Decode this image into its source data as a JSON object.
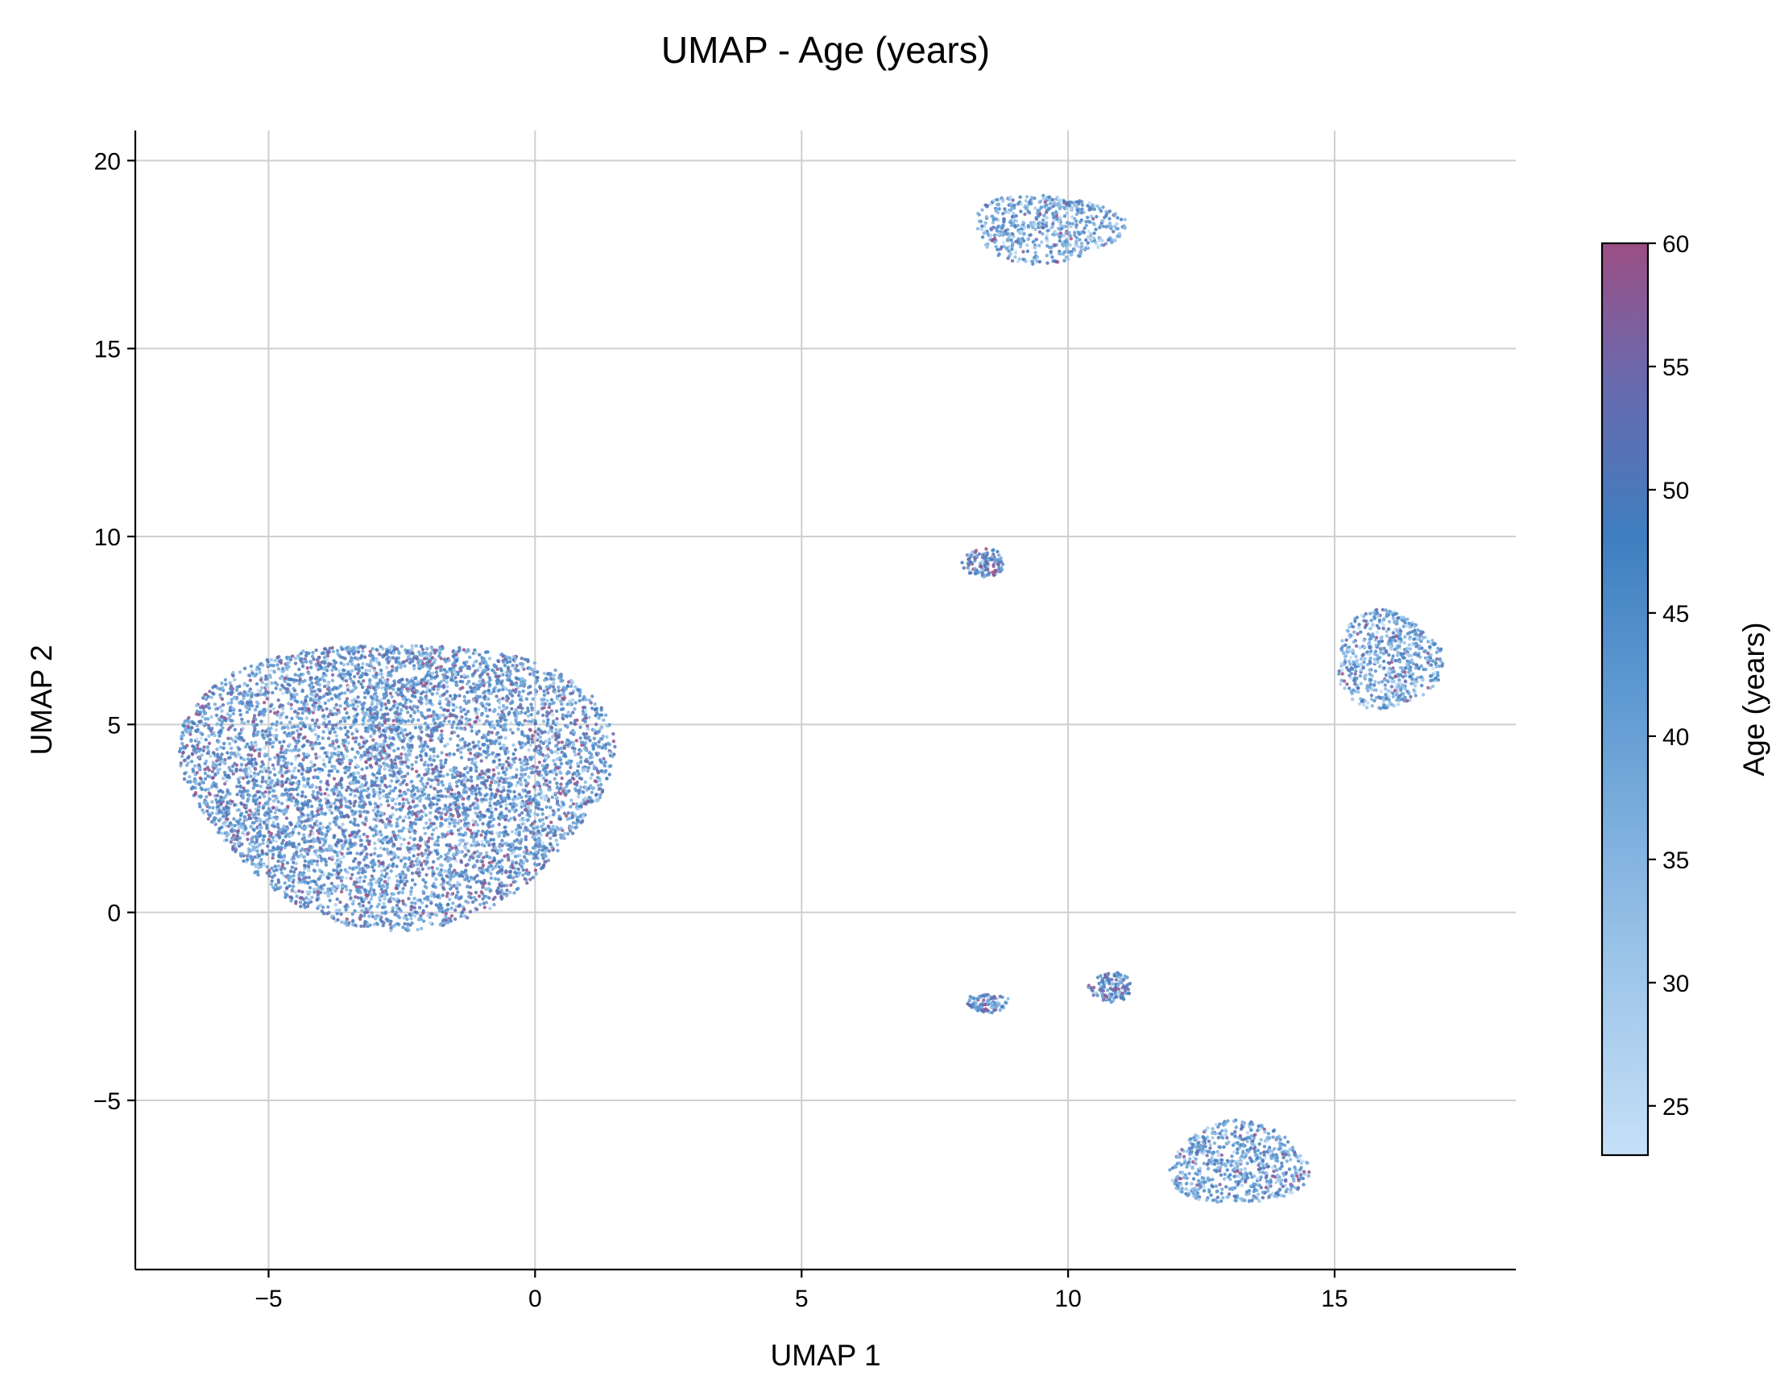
{
  "chart_data": {
    "type": "scatter",
    "title": "UMAP - Age (years)",
    "xlabel": "UMAP 1",
    "ylabel": "UMAP 2",
    "xlim": [
      -7.5,
      18.4
    ],
    "ylim": [
      -9.5,
      20.8
    ],
    "xticks": [
      -5,
      0,
      5,
      10,
      15
    ],
    "yticks": [
      -5,
      0,
      5,
      10,
      15,
      20
    ],
    "xtick_labels": [
      "−5",
      "0",
      "5",
      "10",
      "15"
    ],
    "ytick_labels": [
      "−5",
      "0",
      "5",
      "10",
      "15",
      "20"
    ],
    "grid": true,
    "color_by": "Age (years)",
    "colorbar": {
      "label": "Age (years)",
      "range": [
        23,
        60
      ],
      "ticks": [
        25,
        30,
        35,
        40,
        45,
        50,
        55,
        60
      ],
      "tick_labels": [
        "25",
        "30",
        "35",
        "40",
        "45",
        "50",
        "55",
        "60"
      ],
      "colors": [
        "#c6e0f8",
        "#94bfe6",
        "#5f9ad2",
        "#3f7ec0",
        "#6a6aae",
        "#9b4f84"
      ]
    },
    "clusters": [
      {
        "center": [
          -2.6,
          3.6
        ],
        "radius": [
          4.0,
          3.8
        ],
        "age_mean": 44
      },
      {
        "center": [
          9.6,
          18.2
        ],
        "radius": [
          1.4,
          0.9
        ],
        "age_mean": 40
      },
      {
        "center": [
          16.0,
          6.7
        ],
        "radius": [
          1.0,
          1.3
        ],
        "age_mean": 40
      },
      {
        "center": [
          13.2,
          -6.7
        ],
        "radius": [
          1.3,
          1.1
        ],
        "age_mean": 41
      },
      {
        "center": [
          8.4,
          9.3
        ],
        "radius": [
          0.4,
          0.4
        ],
        "age_mean": 47
      },
      {
        "center": [
          10.8,
          -2.0
        ],
        "radius": [
          0.4,
          0.4
        ],
        "age_mean": 47
      },
      {
        "center": [
          8.5,
          -2.4
        ],
        "radius": [
          0.4,
          0.25
        ],
        "age_mean": 42
      }
    ]
  }
}
